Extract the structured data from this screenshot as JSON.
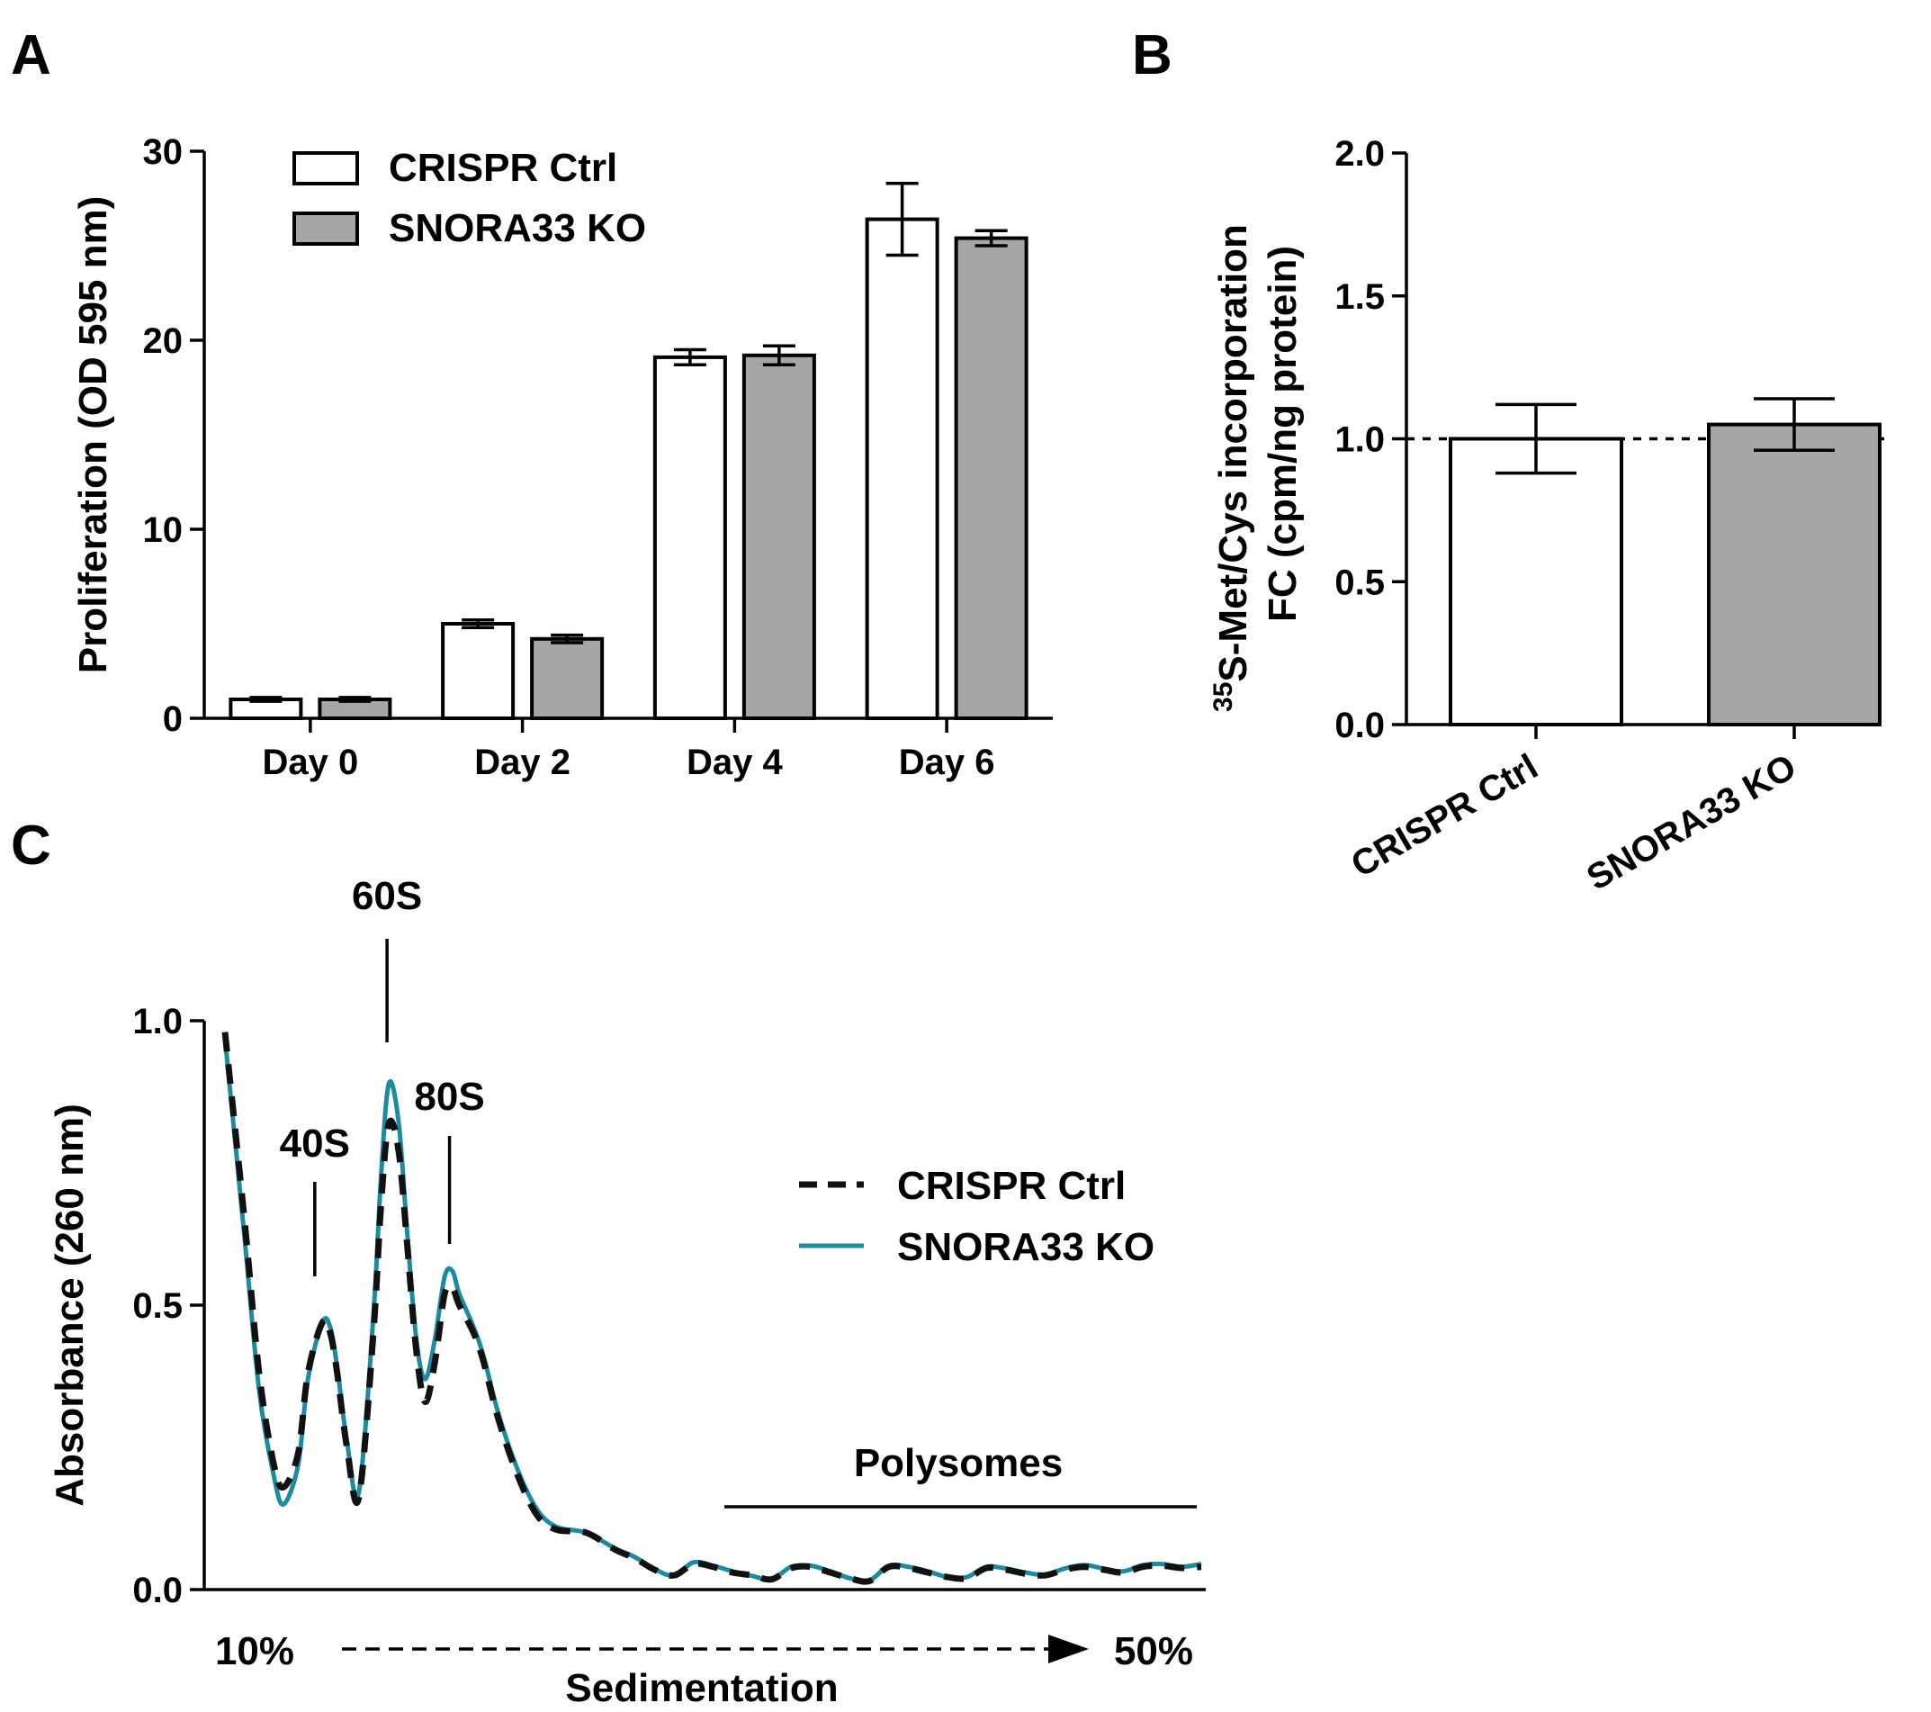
{
  "figure": {
    "panels": [
      "A",
      "B",
      "C"
    ]
  },
  "chart_data": [
    {
      "panel": "A",
      "type": "bar",
      "categories": [
        "Day 0",
        "Day 2",
        "Day 4",
        "Day 6"
      ],
      "series": [
        {
          "name": "CRISPR Ctrl",
          "fill": "#ffffff",
          "values": [
            1.0,
            5.0,
            19.1,
            26.4
          ],
          "errors": [
            0.1,
            0.2,
            0.4,
            1.9
          ]
        },
        {
          "name": "SNORA33 KO",
          "fill": "#a6a6a8",
          "values": [
            1.0,
            4.2,
            19.2,
            25.4
          ],
          "errors": [
            0.1,
            0.2,
            0.5,
            0.4
          ]
        }
      ],
      "ylabel": "Proliferation (OD 595 nm)",
      "ylim": [
        0,
        30
      ],
      "yticks": [
        "0",
        "10",
        "20",
        "30"
      ],
      "legend_position": "top-left",
      "grid": false
    },
    {
      "panel": "B",
      "type": "bar",
      "categories": [
        "CRISPR Ctrl",
        "SNORA33 KO"
      ],
      "values": [
        1.0,
        1.05
      ],
      "errors": [
        0.12,
        0.09
      ],
      "fills": [
        "#ffffff",
        "#a6a6a8"
      ],
      "ylabel_line1": "S-Met/Cys incorporation",
      "ylabel_superscript": "35",
      "ylabel_line2": "FC (cpm/ng protein)",
      "ylim": [
        0,
        2.0
      ],
      "yticks": [
        "0.0",
        "0.5",
        "1.0",
        "1.5",
        "2.0"
      ],
      "reference_line": 1.0,
      "grid": false
    },
    {
      "panel": "C",
      "type": "line",
      "xlabel": "Sedimentation",
      "x_start_label": "10%",
      "x_end_label": "50%",
      "ylabel": "Absorbance (260 nm)",
      "ylim": [
        0,
        1.0
      ],
      "yticks": [
        "0.0",
        "0.5",
        "1.0"
      ],
      "peak_labels": [
        "40S",
        "60S",
        "80S"
      ],
      "region_label": "Polysomes",
      "legend_position": "right",
      "grid": false,
      "series": [
        {
          "name": "CRISPR Ctrl",
          "style": "dashed",
          "color": "#111111",
          "x": [
            0.0,
            0.02,
            0.035,
            0.05,
            0.06,
            0.075,
            0.085,
            0.1,
            0.108,
            0.115,
            0.125,
            0.137,
            0.152,
            0.16,
            0.168,
            0.178,
            0.187,
            0.196,
            0.205,
            0.215,
            0.225,
            0.233,
            0.24,
            0.255,
            0.265,
            0.28,
            0.3,
            0.32,
            0.34,
            0.37,
            0.4,
            0.42,
            0.44,
            0.46,
            0.48,
            0.5,
            0.52,
            0.54,
            0.56,
            0.58,
            0.6,
            0.62,
            0.64,
            0.66,
            0.68,
            0.7,
            0.72,
            0.74,
            0.76,
            0.78,
            0.8,
            0.82,
            0.84,
            0.86,
            0.88,
            0.9,
            0.92,
            0.94,
            0.96,
            0.98,
            1.0
          ],
          "y": [
            0.98,
            0.65,
            0.38,
            0.22,
            0.18,
            0.24,
            0.38,
            0.47,
            0.45,
            0.38,
            0.25,
            0.16,
            0.45,
            0.68,
            0.82,
            0.77,
            0.6,
            0.42,
            0.33,
            0.4,
            0.52,
            0.53,
            0.5,
            0.45,
            0.4,
            0.3,
            0.2,
            0.13,
            0.105,
            0.1,
            0.07,
            0.055,
            0.035,
            0.025,
            0.045,
            0.04,
            0.03,
            0.025,
            0.018,
            0.038,
            0.04,
            0.03,
            0.02,
            0.015,
            0.04,
            0.038,
            0.03,
            0.022,
            0.02,
            0.038,
            0.035,
            0.028,
            0.025,
            0.035,
            0.04,
            0.035,
            0.03,
            0.04,
            0.042,
            0.038,
            0.04
          ]
        },
        {
          "name": "SNORA33 KO",
          "style": "solid",
          "color": "#1a8ba0",
          "x": [
            0.0,
            0.02,
            0.035,
            0.05,
            0.06,
            0.075,
            0.085,
            0.1,
            0.108,
            0.115,
            0.125,
            0.137,
            0.152,
            0.16,
            0.168,
            0.178,
            0.187,
            0.196,
            0.205,
            0.215,
            0.225,
            0.233,
            0.24,
            0.255,
            0.265,
            0.28,
            0.3,
            0.32,
            0.34,
            0.37,
            0.4,
            0.42,
            0.44,
            0.46,
            0.48,
            0.5,
            0.52,
            0.54,
            0.56,
            0.58,
            0.6,
            0.62,
            0.64,
            0.66,
            0.68,
            0.7,
            0.72,
            0.74,
            0.76,
            0.78,
            0.8,
            0.82,
            0.84,
            0.86,
            0.88,
            0.9,
            0.92,
            0.94,
            0.96,
            0.98,
            1.0
          ],
          "y": [
            0.97,
            0.62,
            0.35,
            0.2,
            0.15,
            0.22,
            0.37,
            0.47,
            0.46,
            0.39,
            0.26,
            0.17,
            0.48,
            0.73,
            0.89,
            0.82,
            0.62,
            0.44,
            0.37,
            0.44,
            0.55,
            0.56,
            0.52,
            0.46,
            0.41,
            0.31,
            0.21,
            0.14,
            0.11,
            0.1,
            0.072,
            0.057,
            0.036,
            0.025,
            0.048,
            0.042,
            0.032,
            0.024,
            0.018,
            0.04,
            0.042,
            0.032,
            0.02,
            0.016,
            0.042,
            0.04,
            0.032,
            0.022,
            0.022,
            0.04,
            0.037,
            0.03,
            0.026,
            0.037,
            0.043,
            0.037,
            0.032,
            0.043,
            0.045,
            0.04,
            0.045
          ]
        }
      ]
    }
  ]
}
